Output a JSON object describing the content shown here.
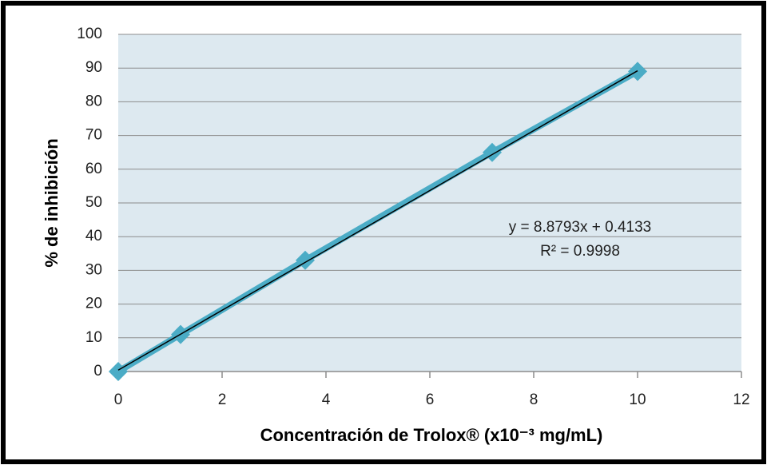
{
  "chart_data": {
    "type": "scatter",
    "x_label": "Concentración de Trolox®  (x10⁻³ mg/mL)",
    "y_label": "% de inhibición",
    "x": [
      0,
      1.2,
      3.6,
      7.2,
      10
    ],
    "series": [
      {
        "color": "#4bacc6",
        "values": [
          0,
          11,
          33,
          65,
          89
        ]
      }
    ],
    "xlim": [
      0,
      12
    ],
    "xticks": [
      0,
      2,
      4,
      6,
      8,
      10,
      12
    ],
    "ylim": [
      0,
      100
    ],
    "yticks": [
      0,
      10,
      20,
      30,
      40,
      50,
      60,
      70,
      80,
      90,
      100
    ],
    "grid": true,
    "trendline": {
      "slope": 8.8793,
      "intercept": 0.4133,
      "color": "#000000",
      "equation": "y = 8.8793x + 0.4133",
      "r2": "R² = 0.9998"
    }
  }
}
